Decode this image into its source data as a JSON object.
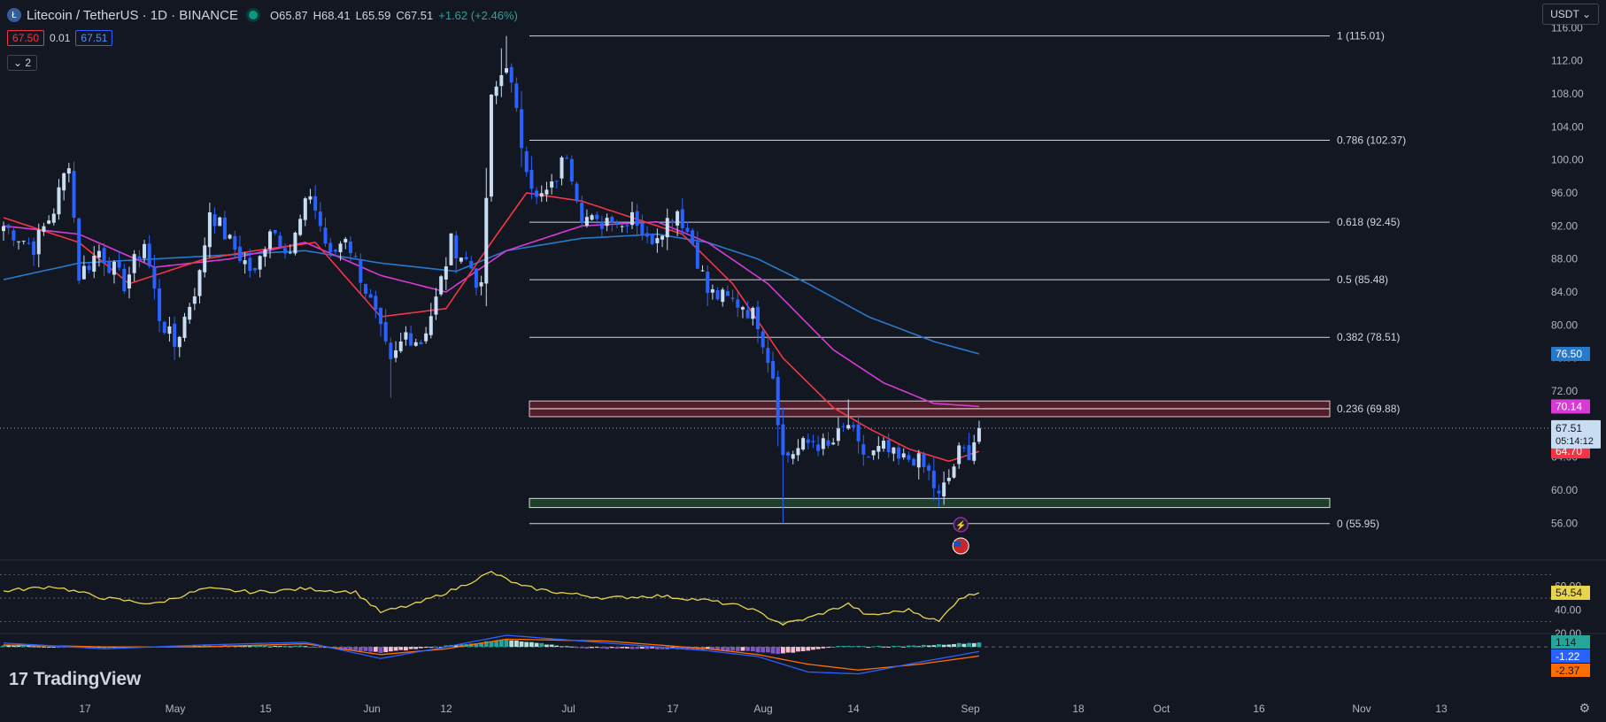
{
  "header": {
    "symbol": "Litecoin / TetherUS · 1D · BINANCE",
    "open": "O65.87",
    "high": "H68.41",
    "low": "L65.59",
    "close": "C67.51",
    "change": "+1.62 (+2.46%)",
    "sell_price": "67.50",
    "spread": "0.01",
    "buy_price": "67.51",
    "collapse_count": "2",
    "currency": "USDT",
    "logo_glyph": "Ł"
  },
  "brand": {
    "name": "TradingView",
    "mark": "17"
  },
  "colors": {
    "background": "#131722",
    "bull": "#c8dcf2",
    "bear": "#2962ff",
    "ema_fast": "#f23645",
    "ema_mid": "#d63bd6",
    "ema_slow": "#2979c9",
    "rsi": "#e8d44d",
    "macd_line": "#2962ff",
    "signal_line": "#ff6d00"
  },
  "chart_data": {
    "type": "candlestick",
    "x_ticks": [
      "17",
      "May",
      "15",
      "Jun",
      "12",
      "Jul",
      "17",
      "Aug",
      "14",
      "Sep",
      "18",
      "Oct",
      "16",
      "Nov",
      "13"
    ],
    "y_ticks": [
      "56.00",
      "60.00",
      "64.00",
      "68.00",
      "72.00",
      "76.00",
      "80.00",
      "84.00",
      "88.00",
      "92.00",
      "96.00",
      "100.00",
      "104.00",
      "108.00",
      "112.00",
      "116.00"
    ],
    "ylim": [
      54,
      117
    ],
    "anchor_closes": [
      [
        0,
        92
      ],
      [
        6,
        89.5
      ],
      [
        10,
        94
      ],
      [
        13,
        100
      ],
      [
        15,
        86
      ],
      [
        19,
        89
      ],
      [
        24,
        85
      ],
      [
        28,
        90
      ],
      [
        31,
        81
      ],
      [
        34,
        77.5
      ],
      [
        39,
        86
      ],
      [
        41,
        94
      ],
      [
        45,
        90
      ],
      [
        50,
        86
      ],
      [
        53,
        92
      ],
      [
        57,
        89
      ],
      [
        61,
        96
      ],
      [
        65,
        88
      ],
      [
        68,
        91
      ],
      [
        71,
        86
      ],
      [
        74,
        81
      ],
      [
        77,
        75
      ],
      [
        80,
        79
      ],
      [
        83,
        78
      ],
      [
        86,
        83
      ],
      [
        89,
        90
      ],
      [
        93,
        87
      ],
      [
        95,
        84
      ],
      [
        97,
        107
      ],
      [
        100,
        112
      ],
      [
        103,
        102
      ],
      [
        106,
        95
      ],
      [
        109,
        96.5
      ],
      [
        112,
        101
      ],
      [
        115,
        93.5
      ],
      [
        118,
        92
      ],
      [
        121,
        93.5
      ],
      [
        123,
        92
      ],
      [
        125,
        94
      ],
      [
        128,
        90
      ],
      [
        131,
        92
      ],
      [
        134,
        94
      ],
      [
        137,
        90
      ],
      [
        140,
        84
      ],
      [
        144,
        83
      ],
      [
        147,
        82.5
      ],
      [
        150,
        80.5
      ],
      [
        153,
        74
      ],
      [
        155,
        64
      ],
      [
        158,
        65
      ],
      [
        161,
        66
      ],
      [
        164,
        65
      ],
      [
        168,
        68
      ],
      [
        170,
        65
      ],
      [
        172,
        64
      ],
      [
        175,
        65
      ],
      [
        178,
        63.5
      ],
      [
        181,
        64
      ],
      [
        184,
        62
      ],
      [
        186,
        59
      ],
      [
        188,
        61.5
      ],
      [
        190,
        64.5
      ],
      [
        192,
        64.7
      ],
      [
        194,
        67.51
      ]
    ],
    "ema_fast_pts": [
      [
        0,
        93
      ],
      [
        15,
        90
      ],
      [
        25,
        85
      ],
      [
        40,
        88
      ],
      [
        50,
        89
      ],
      [
        62,
        90
      ],
      [
        75,
        81
      ],
      [
        88,
        82
      ],
      [
        97,
        90
      ],
      [
        104,
        96
      ],
      [
        115,
        95
      ],
      [
        135,
        91
      ],
      [
        145,
        85
      ],
      [
        155,
        76
      ],
      [
        165,
        70
      ],
      [
        172,
        67.5
      ],
      [
        180,
        65
      ],
      [
        188,
        63.5
      ],
      [
        194,
        64.7
      ]
    ],
    "ema_mid_pts": [
      [
        0,
        92
      ],
      [
        15,
        91
      ],
      [
        30,
        87
      ],
      [
        45,
        88
      ],
      [
        60,
        90
      ],
      [
        75,
        86
      ],
      [
        88,
        84
      ],
      [
        100,
        89
      ],
      [
        115,
        92
      ],
      [
        130,
        92.5
      ],
      [
        140,
        90
      ],
      [
        152,
        85
      ],
      [
        165,
        77
      ],
      [
        175,
        73
      ],
      [
        185,
        70.5
      ],
      [
        194,
        70.14
      ]
    ],
    "ema_slow_pts": [
      [
        0,
        85.5
      ],
      [
        15,
        87.5
      ],
      [
        30,
        88
      ],
      [
        45,
        88.5
      ],
      [
        60,
        89
      ],
      [
        75,
        87.5
      ],
      [
        90,
        86.5
      ],
      [
        100,
        89
      ],
      [
        115,
        90.5
      ],
      [
        130,
        91
      ],
      [
        140,
        90
      ],
      [
        150,
        88
      ],
      [
        160,
        85
      ],
      [
        172,
        81
      ],
      [
        185,
        78
      ],
      [
        194,
        76.5
      ]
    ],
    "fib_levels": [
      {
        "ratio": "1",
        "value": 115.01,
        "label": "1 (115.01)"
      },
      {
        "ratio": "0.786",
        "value": 102.37,
        "label": "0.786 (102.37)"
      },
      {
        "ratio": "0.618",
        "value": 92.45,
        "label": "0.618 (92.45)"
      },
      {
        "ratio": "0.5",
        "value": 85.48,
        "label": "0.5 (85.48)"
      },
      {
        "ratio": "0.382",
        "value": 78.51,
        "label": "0.382 (78.51)"
      },
      {
        "ratio": "0.236",
        "value": 69.88,
        "label": "0.236 (69.88)"
      },
      {
        "ratio": "0",
        "value": 55.95,
        "label": "0 (55.95)"
      }
    ],
    "resistance_zone": [
      68.9,
      70.8
    ],
    "support_zone": [
      57.9,
      59.0
    ],
    "last_price": "67.51",
    "countdown": "05:14:12",
    "price_badges": [
      {
        "value": 76.5,
        "label": "76.50",
        "color": "#2979c9"
      },
      {
        "value": 70.14,
        "label": "70.14",
        "color": "#d63bd6"
      },
      {
        "value": 64.7,
        "label": "64.70",
        "color": "#f23645"
      }
    ],
    "rsi": {
      "value": "54.54",
      "ticks": [
        "60.00",
        "40.00",
        "20.00"
      ],
      "ylim": [
        20,
        80
      ],
      "pts": [
        [
          0,
          56
        ],
        [
          10,
          60
        ],
        [
          20,
          50
        ],
        [
          30,
          45
        ],
        [
          40,
          58
        ],
        [
          50,
          55
        ],
        [
          60,
          58
        ],
        [
          70,
          55
        ],
        [
          75,
          38
        ],
        [
          82,
          45
        ],
        [
          90,
          58
        ],
        [
          97,
          72
        ],
        [
          103,
          60
        ],
        [
          110,
          55
        ],
        [
          120,
          50
        ],
        [
          130,
          52
        ],
        [
          140,
          48
        ],
        [
          148,
          42
        ],
        [
          155,
          28
        ],
        [
          160,
          33
        ],
        [
          168,
          45
        ],
        [
          172,
          35
        ],
        [
          180,
          40
        ],
        [
          186,
          30
        ],
        [
          190,
          50
        ],
        [
          194,
          54.54
        ]
      ]
    },
    "macd": {
      "hist_value": "1.14",
      "macd_value": "-1.22",
      "signal_value": "-2.37",
      "ylim": [
        -8,
        3
      ],
      "hist": [
        [
          0,
          0.5
        ],
        [
          20,
          -0.3
        ],
        [
          40,
          0.4
        ],
        [
          60,
          0.2
        ],
        [
          75,
          -1.5
        ],
        [
          88,
          0.3
        ],
        [
          100,
          1.8
        ],
        [
          115,
          -0.3
        ],
        [
          135,
          -0.6
        ],
        [
          148,
          -1.1
        ],
        [
          155,
          -1.8
        ],
        [
          165,
          0.1
        ],
        [
          180,
          0.2
        ],
        [
          194,
          1.14
        ]
      ],
      "macd_pts": [
        [
          0,
          1
        ],
        [
          20,
          -0.5
        ],
        [
          40,
          0.5
        ],
        [
          60,
          1.2
        ],
        [
          75,
          -3
        ],
        [
          88,
          0
        ],
        [
          100,
          3
        ],
        [
          120,
          1
        ],
        [
          140,
          -1
        ],
        [
          150,
          -2.5
        ],
        [
          160,
          -6.5
        ],
        [
          170,
          -7
        ],
        [
          182,
          -4
        ],
        [
          194,
          -1.22
        ]
      ],
      "signal_pts": [
        [
          0,
          0.5
        ],
        [
          20,
          0
        ],
        [
          40,
          0
        ],
        [
          60,
          0.8
        ],
        [
          75,
          -2
        ],
        [
          88,
          -0.5
        ],
        [
          100,
          2
        ],
        [
          120,
          1.5
        ],
        [
          140,
          -0.5
        ],
        [
          150,
          -2
        ],
        [
          160,
          -4.5
        ],
        [
          170,
          -6
        ],
        [
          182,
          -4.5
        ],
        [
          194,
          -2.37
        ]
      ]
    }
  }
}
